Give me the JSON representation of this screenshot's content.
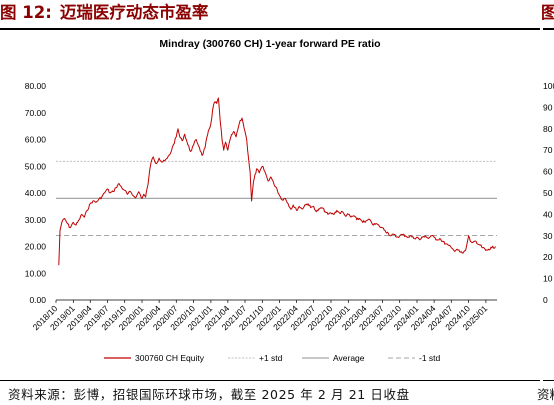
{
  "figure": {
    "label": "图 12:",
    "title": "迈瑞医疗动态市盈率",
    "right_clip_label": "图",
    "source": "资料来源：彭博，招银国际环球市场，截至 2025 年 2 月 21 日收盘",
    "source_right_clip": "资料"
  },
  "colors": {
    "title": "#8b0000",
    "series": "#c00000",
    "std": "#bfbfbf",
    "average": "#a6a6a6"
  },
  "chart_data": {
    "type": "line",
    "title": "Mindray (300760 CH) 1-year forward PE ratio",
    "ylim": [
      0,
      80
    ],
    "y_ticks": [
      "80.00",
      "70.00",
      "60.00",
      "50.00",
      "40.00",
      "30.00",
      "20.00",
      "10.00",
      "0.00"
    ],
    "x_ticks": [
      "2018/10",
      "2019/01",
      "2019/04",
      "2019/07",
      "2019/10",
      "2020/01",
      "2020/04",
      "2020/07",
      "2020/10",
      "2021/01",
      "2021/04",
      "2021/07",
      "2021/10",
      "2022/01",
      "2022/04",
      "2022/07",
      "2022/10",
      "2023/01",
      "2023/04",
      "2023/07",
      "2023/10",
      "2024/01",
      "2024/04",
      "2024/07",
      "2024/10",
      "2025/01"
    ],
    "reference_lines": {
      "plus_1_std": 51.8,
      "average": 38.0,
      "minus_1_std": 24.1
    },
    "legend": [
      "300760 CH Equity",
      "+1 std",
      "Average",
      "-1 std"
    ],
    "legend_position": "bottom",
    "grid": false,
    "series": [
      {
        "name": "300760 CH Equity",
        "points": [
          [
            "2018/10/16",
            13.0
          ],
          [
            "2018/10/22",
            26.0
          ],
          [
            "2018/11/01",
            29.0
          ],
          [
            "2018/11/15",
            30.5
          ],
          [
            "2018/12/01",
            28.5
          ],
          [
            "2018/12/15",
            27.0
          ],
          [
            "2019/01/01",
            29.0
          ],
          [
            "2019/01/15",
            28.0
          ],
          [
            "2019/02/01",
            30.0
          ],
          [
            "2019/02/15",
            32.0
          ],
          [
            "2019/03/01",
            31.0
          ],
          [
            "2019/03/15",
            33.5
          ],
          [
            "2019/04/01",
            36.0
          ],
          [
            "2019/04/15",
            37.0
          ],
          [
            "2019/05/01",
            36.5
          ],
          [
            "2019/05/15",
            37.5
          ],
          [
            "2019/06/01",
            38.5
          ],
          [
            "2019/06/15",
            40.0
          ],
          [
            "2019/07/01",
            41.5
          ],
          [
            "2019/07/15",
            40.0
          ],
          [
            "2019/08/01",
            40.5
          ],
          [
            "2019/08/15",
            42.0
          ],
          [
            "2019/09/01",
            43.5
          ],
          [
            "2019/09/15",
            42.0
          ],
          [
            "2019/10/01",
            41.0
          ],
          [
            "2019/10/15",
            39.5
          ],
          [
            "2019/11/01",
            40.5
          ],
          [
            "2019/11/15",
            39.0
          ],
          [
            "2019/12/01",
            38.5
          ],
          [
            "2019/12/15",
            40.5
          ],
          [
            "2020/01/01",
            38.0
          ],
          [
            "2020/01/10",
            39.5
          ],
          [
            "2020/01/20",
            38.5
          ],
          [
            "2020/02/01",
            43.0
          ],
          [
            "2020/02/10",
            48.0
          ],
          [
            "2020/02/20",
            52.0
          ],
          [
            "2020/03/01",
            53.5
          ],
          [
            "2020/03/15",
            51.0
          ],
          [
            "2020/04/01",
            53.0
          ],
          [
            "2020/04/15",
            51.5
          ],
          [
            "2020/05/01",
            52.0
          ],
          [
            "2020/05/15",
            53.0
          ],
          [
            "2020/06/01",
            55.0
          ],
          [
            "2020/06/15",
            58.0
          ],
          [
            "2020/07/01",
            61.0
          ],
          [
            "2020/07/10",
            64.0
          ],
          [
            "2020/07/20",
            61.0
          ],
          [
            "2020/08/01",
            59.5
          ],
          [
            "2020/08/15",
            62.0
          ],
          [
            "2020/09/01",
            58.0
          ],
          [
            "2020/09/15",
            55.5
          ],
          [
            "2020/10/01",
            58.0
          ],
          [
            "2020/10/15",
            60.0
          ],
          [
            "2020/11/01",
            57.0
          ],
          [
            "2020/11/15",
            54.0
          ],
          [
            "2020/12/01",
            57.0
          ],
          [
            "2020/12/15",
            62.0
          ],
          [
            "2021/01/01",
            66.0
          ],
          [
            "2021/01/10",
            71.0
          ],
          [
            "2021/01/20",
            74.0
          ],
          [
            "2021/02/01",
            73.5
          ],
          [
            "2021/02/10",
            75.5
          ],
          [
            "2021/02/20",
            66.5
          ],
          [
            "2021/03/01",
            60.0
          ],
          [
            "2021/03/10",
            56.0
          ],
          [
            "2021/03/20",
            59.0
          ],
          [
            "2021/04/01",
            56.0
          ],
          [
            "2021/04/15",
            60.5
          ],
          [
            "2021/05/01",
            63.0
          ],
          [
            "2021/05/15",
            61.0
          ],
          [
            "2021/06/01",
            66.0
          ],
          [
            "2021/06/15",
            68.0
          ],
          [
            "2021/07/01",
            63.0
          ],
          [
            "2021/07/10",
            60.0
          ],
          [
            "2021/07/20",
            53.0
          ],
          [
            "2021/07/28",
            48.0
          ],
          [
            "2021/08/05",
            37.0
          ],
          [
            "2021/08/15",
            44.0
          ],
          [
            "2021/09/01",
            49.0
          ],
          [
            "2021/09/15",
            47.5
          ],
          [
            "2021/10/01",
            50.0
          ],
          [
            "2021/10/15",
            48.0
          ],
          [
            "2021/11/01",
            44.5
          ],
          [
            "2021/11/15",
            46.0
          ],
          [
            "2021/12/01",
            43.5
          ],
          [
            "2021/12/15",
            42.0
          ],
          [
            "2022/01/01",
            39.0
          ],
          [
            "2022/01/15",
            37.5
          ],
          [
            "2022/02/01",
            38.0
          ],
          [
            "2022/02/15",
            36.0
          ],
          [
            "2022/03/01",
            34.0
          ],
          [
            "2022/03/15",
            35.5
          ],
          [
            "2022/04/01",
            33.5
          ],
          [
            "2022/04/15",
            35.0
          ],
          [
            "2022/05/01",
            34.0
          ],
          [
            "2022/05/15",
            35.5
          ],
          [
            "2022/06/01",
            36.0
          ],
          [
            "2022/06/15",
            34.5
          ],
          [
            "2022/07/01",
            35.0
          ],
          [
            "2022/07/15",
            33.0
          ],
          [
            "2022/08/01",
            34.0
          ],
          [
            "2022/08/15",
            34.5
          ],
          [
            "2022/09/01",
            33.0
          ],
          [
            "2022/09/15",
            32.0
          ],
          [
            "2022/10/01",
            32.5
          ],
          [
            "2022/10/15",
            32.0
          ],
          [
            "2022/11/01",
            33.5
          ],
          [
            "2022/11/15",
            32.5
          ],
          [
            "2022/12/01",
            33.0
          ],
          [
            "2022/12/15",
            31.5
          ],
          [
            "2023/01/01",
            32.0
          ],
          [
            "2023/01/15",
            31.0
          ],
          [
            "2023/02/01",
            31.5
          ],
          [
            "2023/02/15",
            30.0
          ],
          [
            "2023/03/01",
            30.5
          ],
          [
            "2023/03/15",
            29.5
          ],
          [
            "2023/04/01",
            29.0
          ],
          [
            "2023/04/15",
            30.0
          ],
          [
            "2023/05/01",
            29.5
          ],
          [
            "2023/05/15",
            28.0
          ],
          [
            "2023/06/01",
            28.5
          ],
          [
            "2023/06/15",
            27.5
          ],
          [
            "2023/07/01",
            27.0
          ],
          [
            "2023/07/15",
            26.0
          ],
          [
            "2023/08/01",
            25.0
          ],
          [
            "2023/08/15",
            24.0
          ],
          [
            "2023/09/01",
            24.5
          ],
          [
            "2023/09/15",
            23.5
          ],
          [
            "2023/10/01",
            24.0
          ],
          [
            "2023/10/15",
            24.5
          ],
          [
            "2023/11/01",
            24.0
          ],
          [
            "2023/11/15",
            23.5
          ],
          [
            "2023/12/01",
            24.0
          ],
          [
            "2023/12/15",
            23.0
          ],
          [
            "2024/01/01",
            23.5
          ],
          [
            "2024/01/15",
            22.5
          ],
          [
            "2024/02/01",
            23.5
          ],
          [
            "2024/02/15",
            24.0
          ],
          [
            "2024/03/01",
            23.0
          ],
          [
            "2024/03/15",
            24.0
          ],
          [
            "2024/04/01",
            23.5
          ],
          [
            "2024/04/15",
            22.5
          ],
          [
            "2024/05/01",
            23.0
          ],
          [
            "2024/05/15",
            22.0
          ],
          [
            "2024/06/01",
            21.0
          ],
          [
            "2024/06/15",
            20.5
          ],
          [
            "2024/07/01",
            19.5
          ],
          [
            "2024/07/15",
            18.5
          ],
          [
            "2024/08/01",
            19.0
          ],
          [
            "2024/08/15",
            18.0
          ],
          [
            "2024/09/01",
            17.5
          ],
          [
            "2024/09/15",
            18.5
          ],
          [
            "2024/10/01",
            24.0
          ],
          [
            "2024/10/10",
            22.0
          ],
          [
            "2024/10/20",
            21.5
          ],
          [
            "2024/11/01",
            22.0
          ],
          [
            "2024/11/15",
            21.0
          ],
          [
            "2024/12/01",
            20.5
          ],
          [
            "2024/12/15",
            19.5
          ],
          [
            "2025/01/01",
            18.5
          ],
          [
            "2025/01/15",
            19.0
          ],
          [
            "2025/02/01",
            19.5
          ],
          [
            "2025/02/21",
            20.0
          ]
        ]
      }
    ]
  }
}
